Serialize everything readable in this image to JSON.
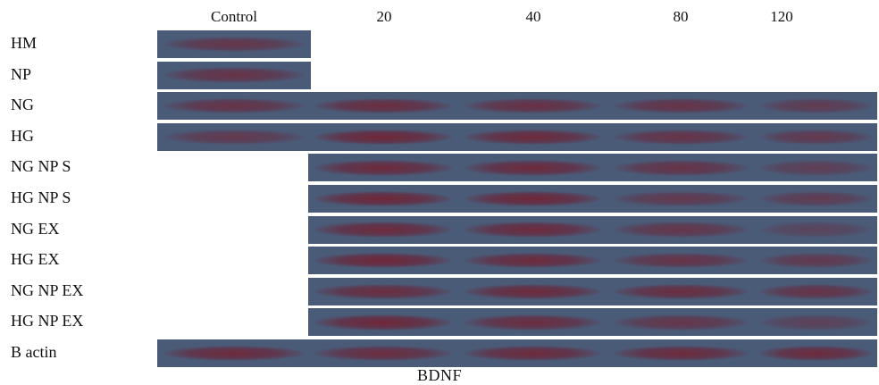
{
  "columns": [
    "Control",
    "20",
    "40",
    "80",
    "120"
  ],
  "rows": [
    {
      "label": "HM",
      "lanes": [
        0.65,
        0,
        0,
        0,
        0
      ]
    },
    {
      "label": "NP",
      "lanes": [
        0.7,
        0,
        0,
        0,
        0
      ]
    },
    {
      "label": "NG",
      "lanes": [
        0.7,
        0.8,
        0.75,
        0.7,
        0.55
      ]
    },
    {
      "label": "HG",
      "lanes": [
        0.6,
        0.9,
        0.85,
        0.7,
        0.6
      ]
    },
    {
      "label": "NG NP S",
      "lanes": [
        0,
        0.85,
        0.85,
        0.7,
        0.5
      ]
    },
    {
      "label": "HG NP S",
      "lanes": [
        0,
        0.9,
        0.9,
        0.6,
        0.55
      ]
    },
    {
      "label": "NG EX",
      "lanes": [
        0,
        0.85,
        0.85,
        0.65,
        0.4
      ]
    },
    {
      "label": "HG EX",
      "lanes": [
        0,
        0.9,
        0.85,
        0.7,
        0.6
      ]
    },
    {
      "label": "NG NP EX",
      "lanes": [
        0,
        0.8,
        0.85,
        0.8,
        0.7
      ]
    },
    {
      "label": "HG NP EX",
      "lanes": [
        0,
        0.9,
        0.8,
        0.65,
        0.45
      ]
    },
    {
      "label": "B actin",
      "lanes": [
        0.85,
        0.8,
        0.85,
        0.85,
        0.85
      ]
    }
  ],
  "caption": "BDNF",
  "colors": {
    "membrane": "#4a5b78",
    "band": "#7a1e2d",
    "separator": "#ffffff"
  }
}
